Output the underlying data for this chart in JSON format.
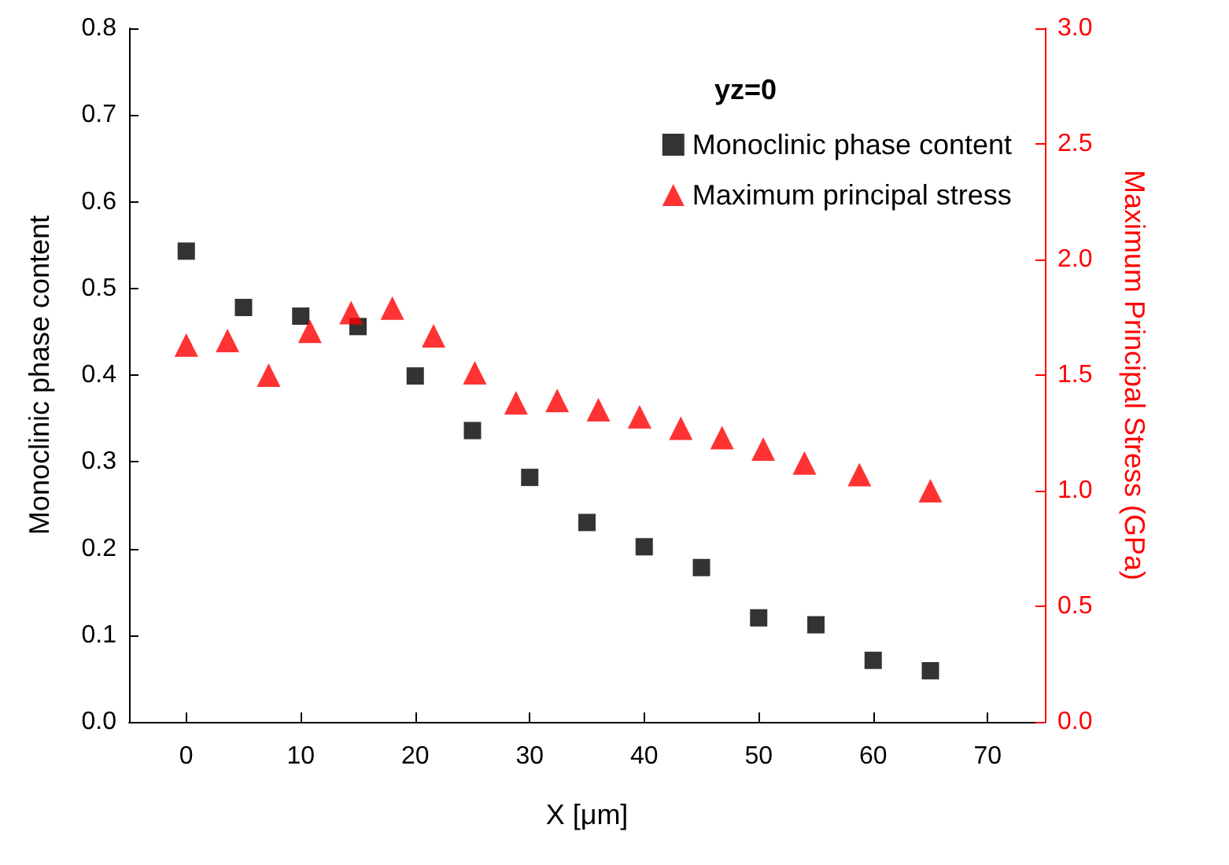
{
  "chart_data": {
    "type": "scatter",
    "xlabel": "X [μm]",
    "ylabel": "Monoclinic phase content",
    "y2label": "Maximum Principal Stress (GPa)",
    "legend_title": "yz=0",
    "legend": "top right",
    "grid": false,
    "xlim": [
      -5,
      75
    ],
    "xticks": [
      0,
      10,
      20,
      30,
      40,
      50,
      60,
      70
    ],
    "ylim": [
      0,
      0.8
    ],
    "yticks": [
      {
        "value": 0,
        "label": "0.0"
      },
      0.1,
      0.2,
      0.3,
      0.4,
      0.5,
      0.6,
      0.7,
      0.8
    ],
    "y2lim": [
      0,
      3
    ],
    "y2ticks": [
      {
        "value": 0,
        "label": "0.0"
      },
      0.5,
      {
        "value": 1,
        "label": "1.0"
      },
      1.5,
      {
        "value": 2,
        "label": "2.0"
      },
      2.5,
      {
        "value": 3,
        "label": "3.0"
      }
    ],
    "series": [
      {
        "name": "Monoclinic phase content",
        "color": "#000000",
        "marker": "square",
        "x": [
          0,
          5,
          10,
          15,
          20,
          25,
          30,
          35,
          40,
          45,
          50,
          55,
          60,
          65
        ],
        "values": [
          0.543,
          0.478,
          0.468,
          0.456,
          0.399,
          0.336,
          0.282,
          0.23,
          0.202,
          0.178,
          0.12,
          0.112,
          0.071,
          0.059
        ]
      },
      {
        "name": "Maximum principal stress",
        "color": "#ff0000",
        "marker": "triangle",
        "axis": "y2",
        "x": [
          0,
          3.6,
          7.2,
          10.8,
          14.4,
          18,
          21.6,
          25.2,
          28.8,
          32.4,
          36,
          39.6,
          43.2,
          46.8,
          50.4,
          54,
          58.8,
          65
        ],
        "values": [
          1.63,
          1.65,
          1.5,
          1.69,
          1.77,
          1.79,
          1.67,
          1.51,
          1.38,
          1.39,
          1.35,
          1.32,
          1.27,
          1.23,
          1.18,
          1.12,
          1.07,
          1.0
        ]
      }
    ]
  }
}
